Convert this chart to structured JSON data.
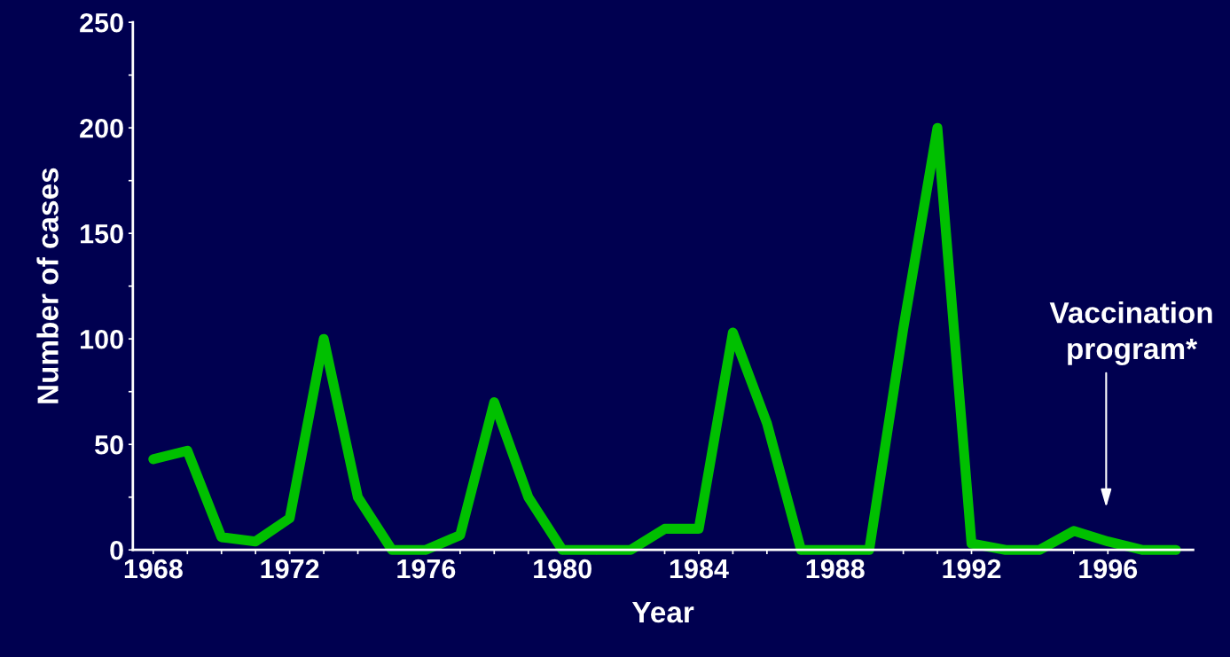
{
  "chart_data": {
    "type": "line",
    "xlabel": "Year",
    "ylabel": "Number of cases",
    "x": [
      1968,
      1969,
      1970,
      1971,
      1972,
      1973,
      1974,
      1975,
      1976,
      1977,
      1978,
      1979,
      1980,
      1981,
      1982,
      1983,
      1984,
      1985,
      1986,
      1987,
      1988,
      1989,
      1990,
      1991,
      1992,
      1993,
      1994,
      1995,
      1996,
      1997,
      1998
    ],
    "series": [
      {
        "color": "#00c000",
        "values": [
          43,
          47,
          6,
          4,
          15,
          100,
          25,
          0,
          0,
          7,
          70,
          25,
          0,
          0,
          0,
          10,
          10,
          103,
          60,
          0,
          0,
          0,
          105,
          200,
          3,
          0,
          0,
          9,
          4,
          0,
          0
        ]
      }
    ],
    "xlim": [
      1967.4,
      1998.5
    ],
    "xticks": [
      1968,
      {
        "value": 1969,
        "label": null
      },
      {
        "value": 1970,
        "label": null
      },
      {
        "value": 1971,
        "label": null
      },
      1972,
      {
        "value": 1973,
        "label": null
      },
      {
        "value": 1974,
        "label": null
      },
      {
        "value": 1975,
        "label": null
      },
      1976,
      {
        "value": 1977,
        "label": null
      },
      {
        "value": 1978,
        "label": null
      },
      {
        "value": 1979,
        "label": null
      },
      1980,
      {
        "value": 1981,
        "label": null
      },
      {
        "value": 1982,
        "label": null
      },
      {
        "value": 1983,
        "label": null
      },
      1984,
      {
        "value": 1985,
        "label": null
      },
      {
        "value": 1986,
        "label": null
      },
      {
        "value": 1987,
        "label": null
      },
      1988,
      {
        "value": 1989,
        "label": null
      },
      {
        "value": 1990,
        "label": null
      },
      {
        "value": 1991,
        "label": null
      },
      1992,
      {
        "value": 1993,
        "label": null
      },
      {
        "value": 1994,
        "label": null
      },
      {
        "value": 1995,
        "label": null
      },
      1996,
      {
        "value": 1997,
        "label": null
      },
      {
        "value": 1998,
        "label": null
      }
    ],
    "ylim": [
      0,
      250
    ],
    "yticks": [
      0,
      {
        "value": 25,
        "label": null
      },
      50,
      {
        "value": 75,
        "label": null
      },
      100,
      {
        "value": 125,
        "label": null
      },
      150,
      {
        "value": 175,
        "label": null
      },
      200,
      {
        "value": 225,
        "label": null
      },
      250
    ],
    "annotations": [
      "Vaccination\nprogram*"
    ],
    "grid": false,
    "legend": false,
    "marker": "none",
    "line_style": "solid"
  }
}
